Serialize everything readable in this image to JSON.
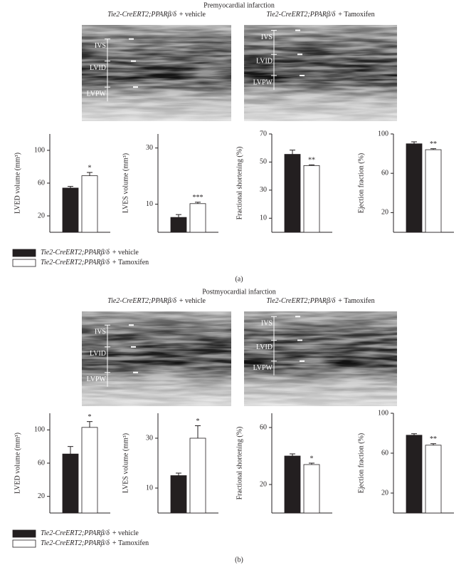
{
  "panels": [
    {
      "title": "Premyocardial infarction",
      "images": [
        {
          "genotype": "Tie2-CreERT2;PPARβ/δ",
          "treatment": "+ vehicle",
          "labels": [
            "IVS",
            "LVID",
            "LVPW"
          ]
        },
        {
          "genotype": "Tie2-CreERT2;PPARβ/δ",
          "treatment": "+ Tamoxifen",
          "labels": [
            "IVS",
            "LVID",
            "LVPW"
          ]
        }
      ],
      "legend": [
        {
          "genotype": "Tie2-CreERT2;PPARβ/δ",
          "treatment": "+ vehicle",
          "color": "#231f20"
        },
        {
          "genotype": "Tie2-CreERT2;PPARβ/δ",
          "treatment": "+ Tamoxifen",
          "color": "#ffffff"
        }
      ],
      "caption": "(a)"
    },
    {
      "title": "Postmyocardial infarction",
      "images": [
        {
          "genotype": "Tie2-CreERT2;PPARβ/δ",
          "treatment": "+ vehicle",
          "labels": [
            "IVS",
            "LVID",
            "LVPW"
          ]
        },
        {
          "genotype": "Tie2-CreERT2;PPARβ/δ",
          "treatment": "+ Tamoxifen",
          "labels": [
            "IVS",
            "LVID",
            "LVPW"
          ]
        }
      ],
      "legend": [
        {
          "genotype": "Tie2-CreERT2;PPARβ/δ",
          "treatment": "+ vehicle",
          "color": "#231f20"
        },
        {
          "genotype": "Tie2-CreERT2;PPARβ/δ",
          "treatment": "+ Tamoxifen",
          "color": "#ffffff"
        }
      ],
      "caption": "(b)"
    }
  ],
  "chart_data": [
    {
      "type": "bar",
      "ylabel": "LVED volume (mm³)",
      "ylim": [
        0,
        120
      ],
      "yticks": [
        20,
        60,
        100
      ],
      "values": [
        54,
        69
      ],
      "errors": [
        2,
        4
      ],
      "colors": [
        "#231f20",
        "#ffffff"
      ],
      "significance": "*"
    },
    {
      "type": "bar",
      "ylabel": "LVES volume (mm³)",
      "ylim": [
        0,
        35
      ],
      "yticks": [
        10,
        30
      ],
      "values": [
        5.3,
        10.2
      ],
      "errors": [
        1,
        0.5
      ],
      "colors": [
        "#231f20",
        "#ffffff"
      ],
      "significance": "***"
    },
    {
      "type": "bar",
      "ylabel": "Fractional shortening (%)",
      "ylim": [
        0,
        70
      ],
      "yticks": [
        10,
        30,
        50,
        70
      ],
      "values": [
        55.5,
        47.5
      ],
      "errors": [
        3,
        0.5
      ],
      "colors": [
        "#231f20",
        "#ffffff"
      ],
      "significance": "**"
    },
    {
      "type": "bar",
      "ylabel": "Ejection fraction (%)",
      "ylim": [
        0,
        100
      ],
      "yticks": [
        20,
        60,
        100
      ],
      "values": [
        90,
        84
      ],
      "errors": [
        2,
        1
      ],
      "colors": [
        "#231f20",
        "#ffffff"
      ],
      "significance": "**"
    },
    {
      "type": "bar",
      "ylabel": "LVED volume (mm³)",
      "ylim": [
        0,
        120
      ],
      "yticks": [
        20,
        60,
        100
      ],
      "values": [
        71,
        103
      ],
      "errors": [
        9,
        7
      ],
      "colors": [
        "#231f20",
        "#ffffff"
      ],
      "significance": "*"
    },
    {
      "type": "bar",
      "ylabel": "LVES volume (mm³)",
      "ylim": [
        0,
        40
      ],
      "yticks": [
        10,
        30
      ],
      "values": [
        15,
        30
      ],
      "errors": [
        1,
        5
      ],
      "colors": [
        "#231f20",
        "#ffffff"
      ],
      "significance": "*"
    },
    {
      "type": "bar",
      "ylabel": "Fractional shortening (%)",
      "ylim": [
        0,
        70
      ],
      "yticks": [
        20,
        60
      ],
      "values": [
        40,
        34
      ],
      "errors": [
        1.5,
        1
      ],
      "colors": [
        "#231f20",
        "#ffffff"
      ],
      "significance": "*"
    },
    {
      "type": "bar",
      "ylabel": "Ejection fraction (%)",
      "ylim": [
        0,
        100
      ],
      "yticks": [
        20,
        60,
        100
      ],
      "values": [
        78,
        68
      ],
      "errors": [
        1.5,
        1.5
      ],
      "colors": [
        "#231f20",
        "#ffffff"
      ],
      "significance": "**"
    }
  ]
}
